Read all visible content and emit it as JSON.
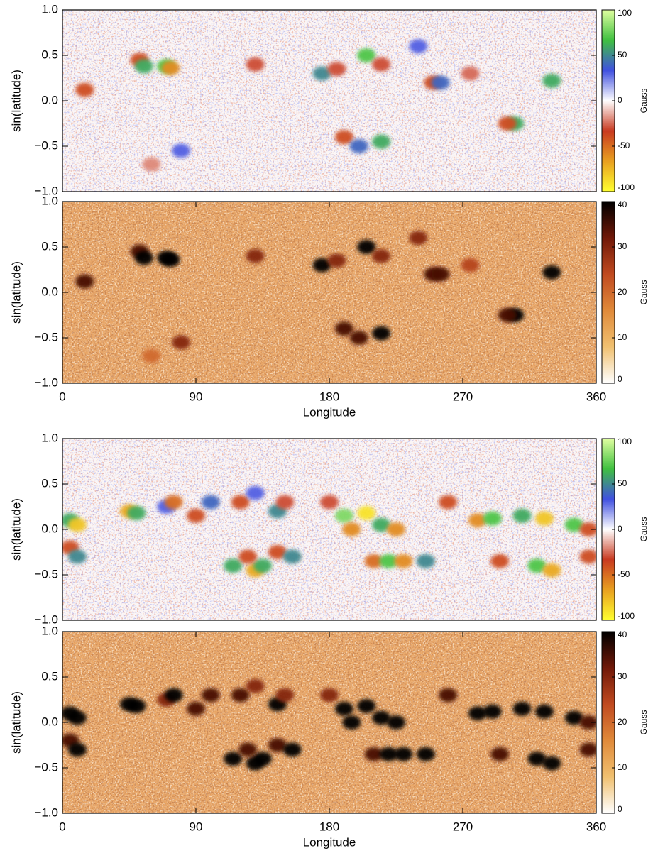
{
  "chart_data": [
    {
      "type": "heatmap",
      "ylabel": "sin(latitude)",
      "xlim": [
        0,
        360
      ],
      "ylim": [
        -1,
        1
      ],
      "yticks": [
        {
          "value": -1,
          "label": "−1.0"
        },
        {
          "value": -0.5,
          "label": "−0.5"
        },
        {
          "value": 0,
          "label": "0.0"
        },
        {
          "value": 0.5,
          "label": "0.5"
        },
        {
          "value": 1,
          "label": "1.0"
        }
      ],
      "colorbar": {
        "label": "Gauss",
        "lim": [
          -100,
          100
        ],
        "ticks": [
          -100,
          -50,
          0,
          50,
          100
        ],
        "colors": [
          "#ffff30",
          "#e8a020",
          "#c83a20",
          "#ffffff",
          "#4050e0",
          "#40c040",
          "#e0ffa0"
        ]
      },
      "x": [
        52,
        55,
        70,
        73,
        15,
        130,
        175,
        185,
        205,
        215,
        240,
        250,
        255,
        275,
        330,
        305,
        300,
        190,
        215,
        200,
        80,
        60
      ],
      "y": [
        0.45,
        0.38,
        0.38,
        0.36,
        0.12,
        0.4,
        0.3,
        0.35,
        0.5,
        0.4,
        0.6,
        0.2,
        0.2,
        0.3,
        0.22,
        -0.25,
        -0.25,
        -0.4,
        -0.45,
        -0.5,
        -0.55,
        -0.7
      ],
      "values": [
        -40,
        60,
        70,
        -60,
        -40,
        -30,
        50,
        -30,
        70,
        -30,
        30,
        -40,
        40,
        -25,
        60,
        60,
        -40,
        -40,
        60,
        40,
        30,
        -20
      ]
    },
    {
      "type": "heatmap",
      "ylabel": "sin(latitude)",
      "xlabel": "Longitude",
      "xlim": [
        0,
        360
      ],
      "ylim": [
        -1,
        1
      ],
      "xticks": [
        0,
        90,
        180,
        270,
        360
      ],
      "yticks": [
        {
          "value": -1,
          "label": "−1.0"
        },
        {
          "value": -0.5,
          "label": "−0.5"
        },
        {
          "value": 0,
          "label": "0.0"
        },
        {
          "value": 0.5,
          "label": "0.5"
        },
        {
          "value": 1,
          "label": "1.0"
        }
      ],
      "colorbar": {
        "label": "Gauss",
        "lim": [
          0,
          40
        ],
        "ticks": [
          0,
          10,
          20,
          30,
          40
        ],
        "colors": [
          "#ffffff",
          "#f0c070",
          "#e08a3a",
          "#c04a20",
          "#701808",
          "#000000"
        ]
      },
      "x": [
        52,
        55,
        70,
        73,
        15,
        130,
        175,
        185,
        205,
        215,
        240,
        250,
        255,
        275,
        330,
        305,
        300,
        190,
        215,
        200,
        80,
        60
      ],
      "y": [
        0.45,
        0.38,
        0.38,
        0.36,
        0.12,
        0.4,
        0.3,
        0.35,
        0.5,
        0.4,
        0.6,
        0.2,
        0.2,
        0.3,
        0.22,
        -0.25,
        -0.25,
        -0.4,
        -0.45,
        -0.5,
        -0.55,
        -0.7
      ],
      "values": [
        35,
        40,
        40,
        40,
        35,
        30,
        40,
        30,
        40,
        30,
        30,
        35,
        35,
        25,
        40,
        40,
        35,
        35,
        40,
        35,
        30,
        20
      ]
    },
    {
      "type": "heatmap",
      "ylabel": "sin(latitude)",
      "xlim": [
        0,
        360
      ],
      "ylim": [
        -1,
        1
      ],
      "yticks": [
        {
          "value": -1,
          "label": "−1.0"
        },
        {
          "value": -0.5,
          "label": "−0.5"
        },
        {
          "value": 0,
          "label": "0.0"
        },
        {
          "value": 0.5,
          "label": "0.5"
        },
        {
          "value": 1,
          "label": "1.0"
        }
      ],
      "colorbar": {
        "label": "Gauss",
        "lim": [
          -100,
          100
        ],
        "ticks": [
          -100,
          -50,
          0,
          50,
          100
        ],
        "colors": [
          "#ffff30",
          "#e8a020",
          "#c83a20",
          "#ffffff",
          "#4050e0",
          "#40c040",
          "#e0ffa0"
        ]
      },
      "x": [
        5,
        10,
        5,
        10,
        45,
        50,
        70,
        75,
        90,
        100,
        120,
        130,
        145,
        150,
        115,
        130,
        135,
        125,
        145,
        155,
        180,
        190,
        195,
        205,
        215,
        225,
        210,
        220,
        230,
        245,
        260,
        280,
        290,
        310,
        325,
        345,
        355,
        295,
        320,
        330,
        355
      ],
      "y": [
        0.1,
        0.05,
        -0.2,
        -0.3,
        0.2,
        0.18,
        0.25,
        0.3,
        0.15,
        0.3,
        0.3,
        0.4,
        0.2,
        0.3,
        -0.4,
        -0.45,
        -0.4,
        -0.3,
        -0.25,
        -0.3,
        0.3,
        0.15,
        0,
        0.18,
        0.05,
        0,
        -0.35,
        -0.35,
        -0.35,
        -0.35,
        0.3,
        0.1,
        0.12,
        0.15,
        0.12,
        0.05,
        0,
        -0.35,
        -0.4,
        -0.45,
        -0.3
      ],
      "values": [
        60,
        -80,
        -40,
        50,
        -70,
        60,
        30,
        -50,
        -40,
        40,
        -40,
        30,
        50,
        -30,
        60,
        -70,
        60,
        -40,
        -40,
        50,
        -30,
        80,
        -60,
        -90,
        60,
        -60,
        -50,
        70,
        -60,
        50,
        -40,
        -60,
        70,
        60,
        -80,
        70,
        -40,
        -40,
        70,
        -70,
        -40
      ]
    },
    {
      "type": "heatmap",
      "ylabel": "sin(latitude)",
      "xlabel": "Longitude",
      "xlim": [
        0,
        360
      ],
      "ylim": [
        -1,
        1
      ],
      "xticks": [
        0,
        90,
        180,
        270,
        360
      ],
      "yticks": [
        {
          "value": -1,
          "label": "−1.0"
        },
        {
          "value": -0.5,
          "label": "−0.5"
        },
        {
          "value": 0,
          "label": "0.0"
        },
        {
          "value": 0.5,
          "label": "0.5"
        },
        {
          "value": 1,
          "label": "1.0"
        }
      ],
      "colorbar": {
        "label": "Gauss",
        "lim": [
          0,
          40
        ],
        "ticks": [
          0,
          10,
          20,
          30,
          40
        ],
        "colors": [
          "#ffffff",
          "#f0c070",
          "#e08a3a",
          "#c04a20",
          "#701808",
          "#000000"
        ]
      },
      "x": [
        5,
        10,
        5,
        10,
        45,
        50,
        70,
        75,
        90,
        100,
        120,
        130,
        145,
        150,
        115,
        130,
        135,
        125,
        145,
        155,
        180,
        190,
        195,
        205,
        215,
        225,
        210,
        220,
        230,
        245,
        260,
        280,
        290,
        310,
        325,
        345,
        355,
        295,
        320,
        330,
        355
      ],
      "y": [
        0.1,
        0.05,
        -0.2,
        -0.3,
        0.2,
        0.18,
        0.25,
        0.3,
        0.15,
        0.3,
        0.3,
        0.4,
        0.2,
        0.3,
        -0.4,
        -0.45,
        -0.4,
        -0.3,
        -0.25,
        -0.3,
        0.3,
        0.15,
        0,
        0.18,
        0.05,
        0,
        -0.35,
        -0.35,
        -0.35,
        -0.35,
        0.3,
        0.1,
        0.12,
        0.15,
        0.12,
        0.05,
        0,
        -0.35,
        -0.4,
        -0.45,
        -0.3
      ],
      "values": [
        40,
        40,
        35,
        40,
        40,
        40,
        30,
        40,
        35,
        35,
        35,
        30,
        40,
        30,
        40,
        40,
        40,
        35,
        35,
        40,
        30,
        40,
        40,
        40,
        40,
        40,
        35,
        40,
        40,
        40,
        35,
        40,
        40,
        40,
        40,
        40,
        35,
        35,
        40,
        40,
        35
      ]
    }
  ]
}
